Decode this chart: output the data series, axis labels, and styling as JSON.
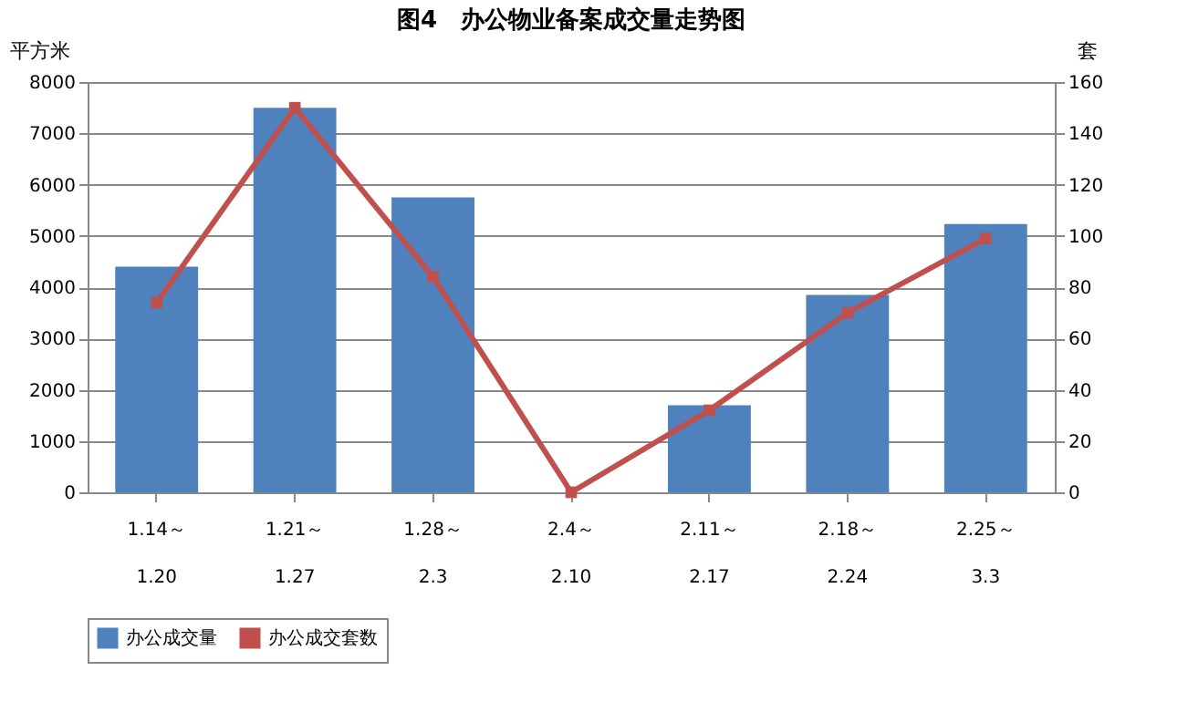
{
  "chart_data": {
    "type": "bar",
    "title": "图4　办公物业备案成交量走势图",
    "ylabel": "平方米",
    "y2label": "套",
    "categories": [
      "1.14～\n1.20",
      "1.21～\n1.27",
      "1.28～\n2.3",
      "2.4～\n2.10",
      "2.11～\n2.17",
      "2.18～\n2.24",
      "2.25～\n3.3"
    ],
    "series": [
      {
        "name": "办公成交量",
        "color": "#4f81bd",
        "values": [
          4400,
          7500,
          5750,
          0,
          1700,
          3850,
          5230
        ]
      },
      {
        "name": "办公成交套数",
        "type": "line",
        "axis": "y2",
        "color": "#c0504d",
        "marker": "square",
        "values": [
          74,
          150,
          84,
          0,
          32,
          70,
          99
        ]
      }
    ],
    "ylim": [
      0,
      8000
    ],
    "yticks": [
      0,
      1000,
      2000,
      3000,
      4000,
      5000,
      6000,
      7000,
      8000
    ],
    "y2lim": [
      0,
      160
    ],
    "y2ticks": [
      0,
      20,
      40,
      60,
      80,
      100,
      120,
      140,
      160
    ],
    "grid": "y",
    "legend": "bottom"
  }
}
